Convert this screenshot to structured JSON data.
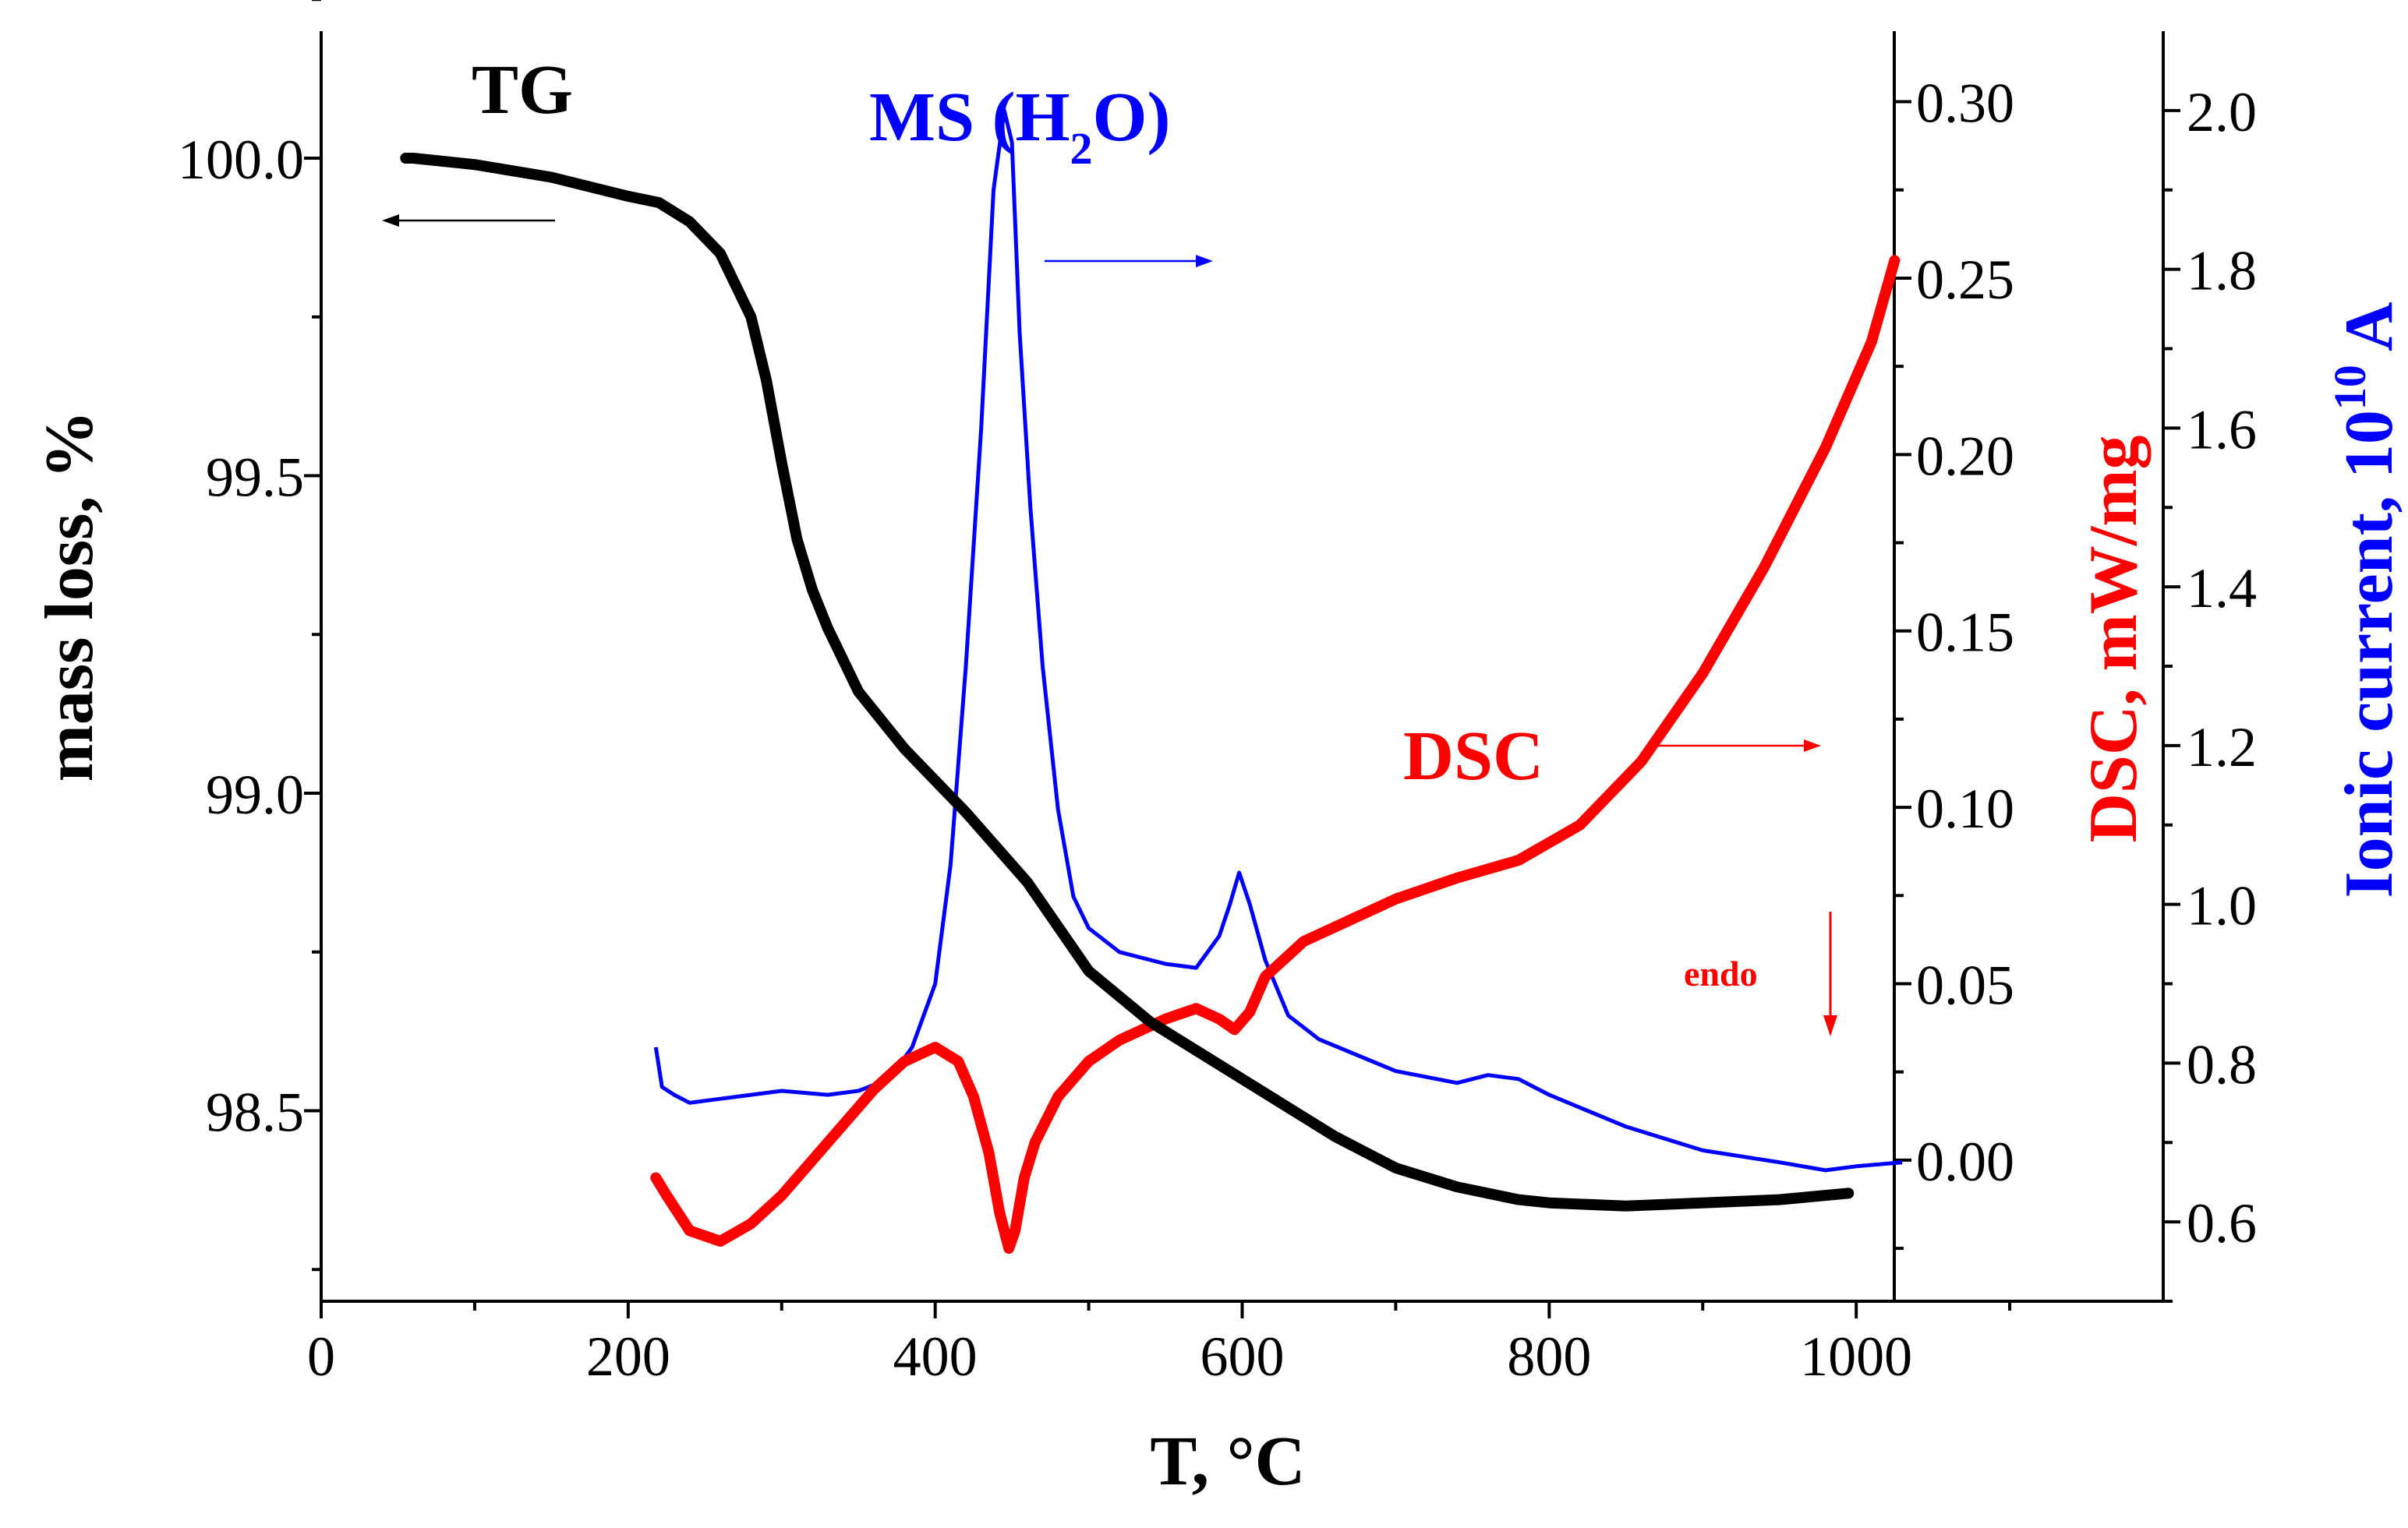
{
  "chart_data": {
    "type": "line",
    "title": "",
    "xlabel": "T, °C",
    "xlim": [
      0,
      1200
    ],
    "xticks": [
      0,
      200,
      400,
      600,
      800,
      1000
    ],
    "axes": {
      "tg": {
        "label": "mass loss, %",
        "ylim": [
          98.2,
          100.2
        ],
        "ticks": [
          98.5,
          99.0,
          99.5,
          100.0
        ],
        "tick_labels": [
          "98.5",
          "99.0",
          "99.5",
          "100.0"
        ],
        "color": "#000000"
      },
      "dsc": {
        "label": "DSC, mW/mg",
        "ylim": [
          -0.04,
          0.32
        ],
        "ticks": [
          0.0,
          0.05,
          0.1,
          0.15,
          0.2,
          0.25,
          0.3
        ],
        "tick_labels": [
          "0.00",
          "0.05",
          "0.10",
          "0.15",
          "0.20",
          "0.25",
          "0.30"
        ],
        "color": "#ff0000"
      },
      "ms": {
        "label_main": "Ionic current, 10",
        "label_sup": "10",
        "label_end": " A",
        "ylim": [
          0.5,
          2.1
        ],
        "ticks": [
          0.6,
          0.8,
          1.0,
          1.2,
          1.4,
          1.6,
          1.8,
          2.0
        ],
        "tick_labels": [
          "0.6",
          "0.8",
          "1.0",
          "1.2",
          "1.4",
          "1.6",
          "1.8",
          "2.0"
        ],
        "color": "#0000ff"
      }
    },
    "series": [
      {
        "name": "TG",
        "axis": "tg",
        "color": "#000000",
        "x": [
          55,
          60,
          100,
          150,
          200,
          220,
          240,
          260,
          280,
          290,
          300,
          310,
          320,
          330,
          350,
          380,
          420,
          460,
          500,
          540,
          580,
          620,
          660,
          700,
          740,
          780,
          800,
          850,
          900,
          950,
          995
        ],
        "y": [
          100.0,
          100.0,
          99.99,
          99.97,
          99.94,
          99.93,
          99.9,
          99.85,
          99.75,
          99.65,
          99.52,
          99.4,
          99.32,
          99.26,
          99.16,
          99.07,
          98.97,
          98.86,
          98.72,
          98.64,
          98.58,
          98.52,
          98.46,
          98.41,
          98.38,
          98.36,
          98.355,
          98.35,
          98.355,
          98.36,
          98.37
        ]
      },
      {
        "name": "DSC",
        "axis": "dsc",
        "color": "#ff0000",
        "x": [
          218,
          225,
          240,
          260,
          280,
          300,
          330,
          360,
          380,
          400,
          415,
          425,
          435,
          442,
          448,
          452,
          458,
          465,
          480,
          500,
          520,
          550,
          570,
          585,
          595,
          605,
          615,
          640,
          670,
          700,
          740,
          780,
          820,
          860,
          900,
          940,
          980,
          1010,
          1025
        ],
        "y": [
          -0.005,
          -0.01,
          -0.02,
          -0.023,
          -0.018,
          -0.01,
          0.005,
          0.02,
          0.028,
          0.032,
          0.028,
          0.018,
          0.002,
          -0.015,
          -0.025,
          -0.02,
          -0.005,
          0.005,
          0.018,
          0.028,
          0.034,
          0.04,
          0.043,
          0.04,
          0.037,
          0.042,
          0.052,
          0.062,
          0.068,
          0.074,
          0.08,
          0.085,
          0.095,
          0.113,
          0.138,
          0.168,
          0.202,
          0.232,
          0.255
        ]
      },
      {
        "name": "MS (H2O)",
        "axis": "ms",
        "color": "#0000ff",
        "x": [
          218,
          222,
          230,
          240,
          260,
          280,
          300,
          330,
          350,
          370,
          385,
          400,
          410,
          420,
          430,
          438,
          445,
          450,
          455,
          462,
          470,
          480,
          490,
          500,
          520,
          550,
          570,
          585,
          592,
          598,
          605,
          615,
          630,
          650,
          700,
          740,
          760,
          780,
          800,
          850,
          900,
          950,
          980,
          1000,
          1030
        ],
        "y": [
          0.82,
          0.77,
          0.76,
          0.75,
          0.755,
          0.76,
          0.765,
          0.76,
          0.765,
          0.78,
          0.82,
          0.9,
          1.05,
          1.3,
          1.6,
          1.9,
          2.0,
          1.96,
          1.72,
          1.5,
          1.3,
          1.12,
          1.01,
          0.97,
          0.94,
          0.925,
          0.92,
          0.96,
          1.0,
          1.04,
          1.0,
          0.93,
          0.86,
          0.83,
          0.79,
          0.775,
          0.785,
          0.78,
          0.76,
          0.72,
          0.69,
          0.675,
          0.665,
          0.67,
          0.675
        ]
      }
    ],
    "annotations": {
      "tg_label": "TG",
      "ms_label_main": "MS (H",
      "ms_label_sub": "2",
      "ms_label_end": "O)",
      "dsc_label": "DSC",
      "endo_label": "endo"
    }
  }
}
